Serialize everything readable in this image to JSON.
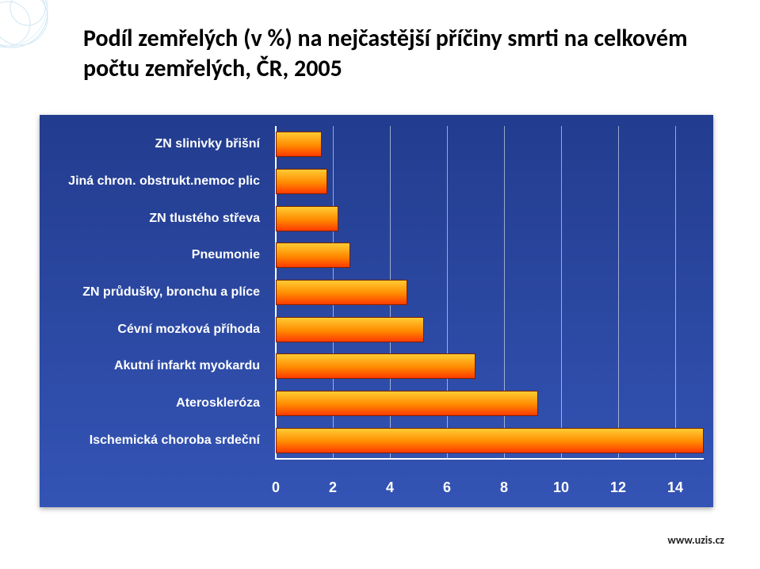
{
  "title": "Podíl zemřelých (v %) na nejčastější příčiny smrti na celkovém počtu zemřelých, ČR, 2005",
  "footer": "www.uzis.cz",
  "chart": {
    "type": "bar",
    "orientation": "horizontal",
    "background_gradient": [
      "#223c8e",
      "#3454b5"
    ],
    "bar_gradient": [
      "#ffcc33",
      "#ff8a00",
      "#ff3a00"
    ],
    "bar_border_color": "#7a2001",
    "grid_color": "rgba(255,255,255,0.55)",
    "label_color": "#ffffff",
    "label_fontsize": 16,
    "tick_fontsize": 18,
    "x_min": 0,
    "x_max": 15,
    "x_ticks": [
      0,
      2,
      4,
      6,
      8,
      10,
      12,
      14
    ],
    "categories": [
      "ZN slinivky břišní",
      "Jiná chron. obstrukt.nemoc plic",
      "ZN tlustého střeva",
      "Pneumonie",
      "ZN průdušky, bronchu a plíce",
      "Cévní mozková příhoda",
      "Akutní infarkt myokardu",
      "Ateroskleróza",
      "Ischemická choroba srdeční"
    ],
    "values": [
      1.6,
      1.8,
      2.2,
      2.6,
      4.6,
      5.2,
      7.0,
      9.2,
      15.0
    ]
  }
}
